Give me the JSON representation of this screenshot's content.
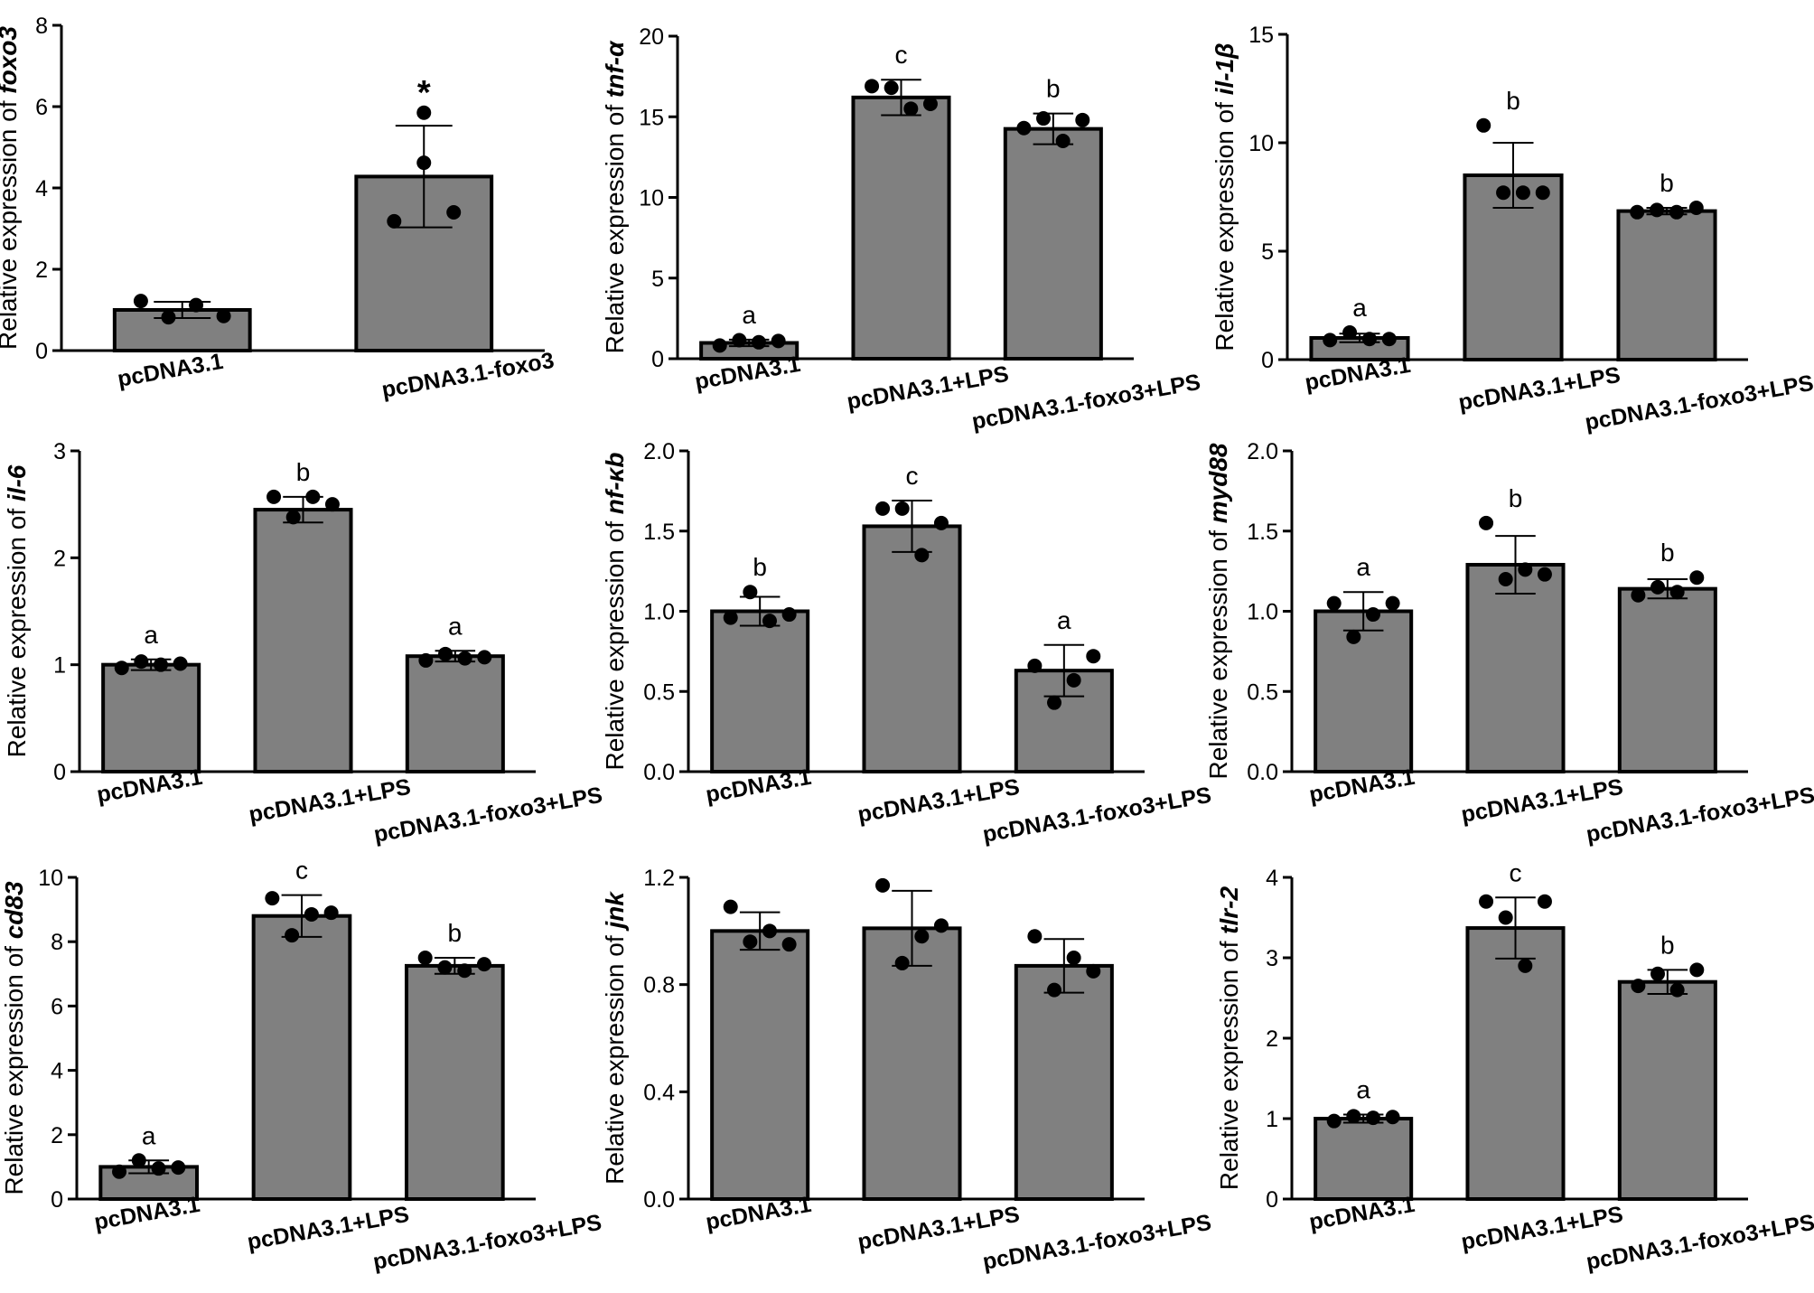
{
  "chart_data": [
    {
      "type": "bar",
      "gene": "foxo3",
      "ylabel_prefix": "Relative expression of",
      "categories": [
        "pcDNA3.1",
        "pcDNA3.1-foxo3"
      ],
      "values": [
        1.0,
        4.28
      ],
      "errors": [
        0.2,
        1.25
      ],
      "points": [
        [
          1.22,
          0.82,
          1.12,
          0.85
        ],
        [
          5.85,
          4.62,
          3.18,
          3.4
        ]
      ],
      "sig": [
        "",
        "*"
      ],
      "ylim": [
        0,
        8
      ],
      "yticks": [
        "0",
        "2",
        "4",
        "6",
        "8"
      ],
      "ytick_values": [
        0,
        2,
        4,
        6,
        8
      ]
    },
    {
      "type": "bar",
      "gene": "tnf-α",
      "ylabel_prefix": "Relative expression of",
      "categories": [
        "pcDNA3.1",
        "pcDNA3.1+LPS",
        "pcDNA3.1-foxo3+LPS"
      ],
      "values": [
        0.98,
        16.2,
        14.25
      ],
      "errors": [
        0.2,
        1.1,
        0.95
      ],
      "points": [
        [
          0.82,
          1.15,
          1.02,
          1.1
        ],
        [
          16.9,
          16.8,
          15.5,
          15.8
        ],
        [
          14.3,
          14.9,
          13.5,
          14.8
        ]
      ],
      "sig": [
        "a",
        "c",
        "b"
      ],
      "ylim": [
        0,
        20
      ],
      "yticks": [
        "0",
        "5",
        "10",
        "15",
        "20"
      ],
      "ytick_values": [
        0,
        5,
        10,
        15,
        20
      ]
    },
    {
      "type": "bar",
      "gene": "il-1β",
      "ylabel_prefix": "Relative expression of",
      "categories": [
        "pcDNA3.1",
        "pcDNA3.1+LPS",
        "pcDNA3.1-foxo3+LPS"
      ],
      "values": [
        1.0,
        8.5,
        6.85
      ],
      "errors": [
        0.2,
        1.5,
        0.15
      ],
      "points": [
        [
          0.9,
          1.25,
          0.95,
          0.95
        ],
        [
          10.8,
          7.7,
          7.7,
          7.7
        ],
        [
          6.8,
          6.9,
          6.8,
          7.0
        ]
      ],
      "sig": [
        "a",
        "b",
        "b"
      ],
      "ylim": [
        0,
        15
      ],
      "yticks": [
        "0",
        "5",
        "10",
        "15"
      ],
      "ytick_values": [
        0,
        5,
        10,
        15
      ]
    },
    {
      "type": "bar",
      "gene": "il-6",
      "ylabel_prefix": "Relative expression of",
      "categories": [
        "pcDNA3.1",
        "pcDNA3.1+LPS",
        "pcDNA3.1-foxo3+LPS"
      ],
      "values": [
        1.0,
        2.45,
        1.08
      ],
      "errors": [
        0.05,
        0.12,
        0.05
      ],
      "points": [
        [
          0.97,
          1.03,
          1.0,
          1.01
        ],
        [
          2.57,
          2.38,
          2.57,
          2.5
        ],
        [
          1.04,
          1.1,
          1.06,
          1.07
        ]
      ],
      "sig": [
        "a",
        "b",
        "a"
      ],
      "ylim": [
        0,
        3
      ],
      "yticks": [
        "0",
        "1",
        "2",
        "3"
      ],
      "ytick_values": [
        0,
        1,
        2,
        3
      ]
    },
    {
      "type": "bar",
      "gene": "nf-κb",
      "ylabel_prefix": "Relative expression of",
      "categories": [
        "pcDNA3.1",
        "pcDNA3.1+LPS",
        "pcDNA3.1-foxo3+LPS"
      ],
      "values": [
        1.0,
        1.53,
        0.63
      ],
      "errors": [
        0.09,
        0.16,
        0.16
      ],
      "points": [
        [
          0.96,
          1.12,
          0.94,
          0.98
        ],
        [
          1.64,
          1.64,
          1.35,
          1.55
        ],
        [
          0.66,
          0.43,
          0.57,
          0.72
        ]
      ],
      "sig": [
        "b",
        "c",
        "a"
      ],
      "ylim": [
        0,
        2
      ],
      "yticks": [
        "0.0",
        "0.5",
        "1.0",
        "1.5",
        "2.0"
      ],
      "ytick_values": [
        0,
        0.5,
        1.0,
        1.5,
        2.0
      ]
    },
    {
      "type": "bar",
      "gene": "myd88",
      "ylabel_prefix": "Relative expression of",
      "categories": [
        "pcDNA3.1",
        "pcDNA3.1+LPS",
        "pcDNA3.1-foxo3+LPS"
      ],
      "values": [
        1.0,
        1.29,
        1.14
      ],
      "errors": [
        0.12,
        0.18,
        0.06
      ],
      "points": [
        [
          1.05,
          0.84,
          0.98,
          1.05
        ],
        [
          1.55,
          1.2,
          1.26,
          1.23
        ],
        [
          1.1,
          1.15,
          1.12,
          1.21
        ]
      ],
      "sig": [
        "a",
        "b",
        "b"
      ],
      "ylim": [
        0,
        2
      ],
      "yticks": [
        "0.0",
        "0.5",
        "1.0",
        "1.5",
        "2.0"
      ],
      "ytick_values": [
        0,
        0.5,
        1.0,
        1.5,
        2.0
      ]
    },
    {
      "type": "bar",
      "gene": "cd83",
      "ylabel_prefix": "Relative expression of",
      "categories": [
        "pcDNA3.1",
        "pcDNA3.1+LPS",
        "pcDNA3.1-foxo3+LPS"
      ],
      "values": [
        1.0,
        8.8,
        7.25
      ],
      "errors": [
        0.2,
        0.65,
        0.25
      ],
      "points": [
        [
          0.85,
          1.2,
          0.95,
          0.98
        ],
        [
          9.35,
          8.2,
          8.85,
          8.9
        ],
        [
          7.5,
          7.2,
          7.1,
          7.3
        ]
      ],
      "sig": [
        "a",
        "c",
        "b"
      ],
      "ylim": [
        0,
        10
      ],
      "yticks": [
        "0",
        "2",
        "4",
        "6",
        "8",
        "10"
      ],
      "ytick_values": [
        0,
        2,
        4,
        6,
        8,
        10
      ]
    },
    {
      "type": "bar",
      "gene": "jnk",
      "ylabel_prefix": "Relative expression of",
      "categories": [
        "pcDNA3.1",
        "pcDNA3.1+LPS",
        "pcDNA3.1-foxo3+LPS"
      ],
      "values": [
        1.0,
        1.01,
        0.87
      ],
      "errors": [
        0.07,
        0.14,
        0.1
      ],
      "points": [
        [
          1.09,
          0.96,
          1.0,
          0.95
        ],
        [
          1.17,
          0.88,
          0.98,
          1.02
        ],
        [
          0.98,
          0.78,
          0.9,
          0.85
        ]
      ],
      "sig": [
        "",
        "",
        ""
      ],
      "ylim": [
        0,
        1.2
      ],
      "yticks": [
        "0.0",
        "0.4",
        "0.8",
        "1.2"
      ],
      "ytick_values": [
        0,
        0.4,
        0.8,
        1.2
      ]
    },
    {
      "type": "bar",
      "gene": "tlr-2",
      "ylabel_prefix": "Relative expression of",
      "categories": [
        "pcDNA3.1",
        "pcDNA3.1+LPS",
        "pcDNA3.1-foxo3+LPS"
      ],
      "values": [
        1.0,
        3.37,
        2.7
      ],
      "errors": [
        0.05,
        0.38,
        0.15
      ],
      "points": [
        [
          0.97,
          1.03,
          1.01,
          1.02
        ],
        [
          3.7,
          3.5,
          2.9,
          3.7
        ],
        [
          2.65,
          2.8,
          2.6,
          2.85
        ]
      ],
      "sig": [
        "a",
        "c",
        "b"
      ],
      "ylim": [
        0,
        4
      ],
      "yticks": [
        "0",
        "1",
        "2",
        "3",
        "4"
      ],
      "ytick_values": [
        0,
        1,
        2,
        3,
        4
      ]
    }
  ]
}
